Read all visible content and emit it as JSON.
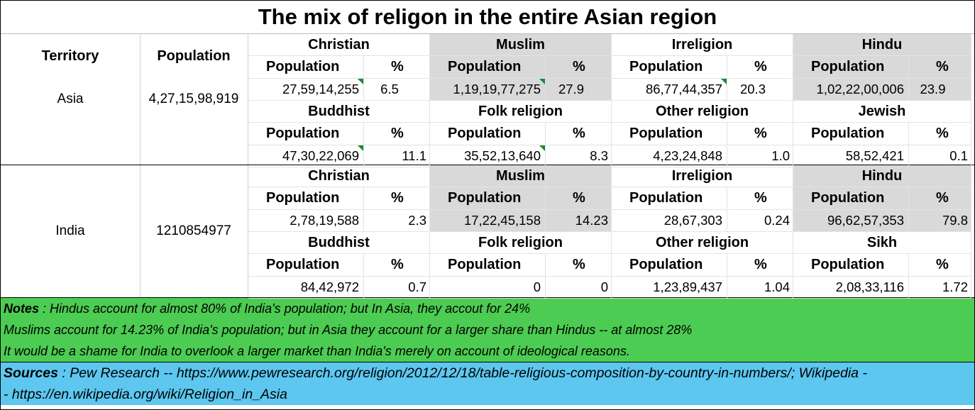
{
  "title": "The mix of religon in the entire Asian region",
  "headers": {
    "territory": "Territory",
    "population": "Population",
    "pop_sub": "Population",
    "pct_sub": "%"
  },
  "accent": {
    "shade": "#d9d9d9",
    "notes_bg": "#4ccc52",
    "sources_bg": "#5dc7ef",
    "flag": "#1a8a2e"
  },
  "blocks": [
    {
      "territory": "Asia",
      "population": "4,27,15,98,919",
      "rows": [
        [
          {
            "name": "Christian",
            "pop": "27,59,14,255",
            "pct": "6.5",
            "flag": true
          },
          {
            "name": "Muslim",
            "pop": "1,19,19,77,275",
            "pct": "27.9",
            "flag": true
          },
          {
            "name": "Irreligion",
            "pop": "86,77,44,357",
            "pct": "20.3",
            "flag": true
          },
          {
            "name": "Hindu",
            "pop": "1,02,22,00,006",
            "pct": "23.9",
            "flag": false
          }
        ],
        [
          {
            "name": "Buddhist",
            "pop": "47,30,22,069",
            "pct": "11.1",
            "flag": true
          },
          {
            "name": "Folk religion",
            "pop": "35,52,13,640",
            "pct": "8.3",
            "flag": true
          },
          {
            "name": "Other religion",
            "pop": "4,23,24,848",
            "pct": "1.0",
            "flag": false
          },
          {
            "name": "Jewish",
            "pop": "58,52,421",
            "pct": "0.1",
            "flag": false
          }
        ]
      ]
    },
    {
      "territory": "India",
      "population": "1210854977",
      "rows": [
        [
          {
            "name": "Christian",
            "pop": "2,78,19,588",
            "pct": "2.3",
            "flag": false
          },
          {
            "name": "Muslim",
            "pop": "17,22,45,158",
            "pct": "14.23",
            "flag": false
          },
          {
            "name": "Irreligion",
            "pop": "28,67,303",
            "pct": "0.24",
            "flag": false
          },
          {
            "name": "Hindu",
            "pop": "96,62,57,353",
            "pct": "79.8",
            "flag": false
          }
        ],
        [
          {
            "name": "Buddhist",
            "pop": "84,42,972",
            "pct": "0.7",
            "flag": false
          },
          {
            "name": "Folk religion",
            "pop": "0",
            "pct": "0",
            "flag": false
          },
          {
            "name": "Other religion",
            "pop": "1,23,89,437",
            "pct": "1.04",
            "flag": false
          },
          {
            "name": "Sikh",
            "pop": "2,08,33,116",
            "pct": "1.72",
            "flag": false
          }
        ]
      ]
    }
  ],
  "notes": {
    "label": "Notes",
    "line1": " : Hindus account for almost 80% of India's population; but In Asia, they accout for 24%",
    "line2": "Muslims account for 14.23% of India's population; but in Asia they account for a larger share than Hindus -- at almost 28%",
    "line3": "It would be a shame for India to overlook a larger market than India's merely on account of ideological reasons."
  },
  "sources": {
    "label": "Sources",
    "line1": " : Pew Research -- https://www.pewresearch.org/religion/2012/12/18/table-religious-composition-by-country-in-numbers/; Wikipedia -",
    "line2": "- https://en.wikipedia.org/wiki/Religion_in_Asia"
  }
}
